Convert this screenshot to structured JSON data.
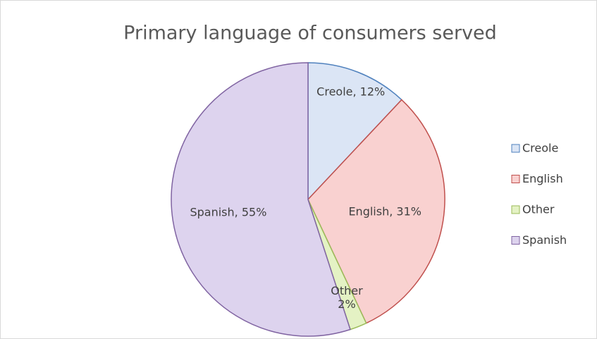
{
  "chart_data": {
    "type": "pie",
    "title": "Primary language of consumers served",
    "categories": [
      "Creole",
      "English",
      "Other",
      "Spanish"
    ],
    "values": [
      12,
      31,
      2,
      55
    ],
    "value_labels": [
      "Creole, 12%",
      "English, 31%",
      "Other\n2%",
      "Spanish, 55%"
    ],
    "colors": [
      "#dbe5f5",
      "#f9d1d0",
      "#e4f2c4",
      "#ddd3ee"
    ],
    "edge_colors": [
      "#4f81bd",
      "#c0504d",
      "#9bbb59",
      "#8064a2"
    ],
    "legend": "right"
  }
}
